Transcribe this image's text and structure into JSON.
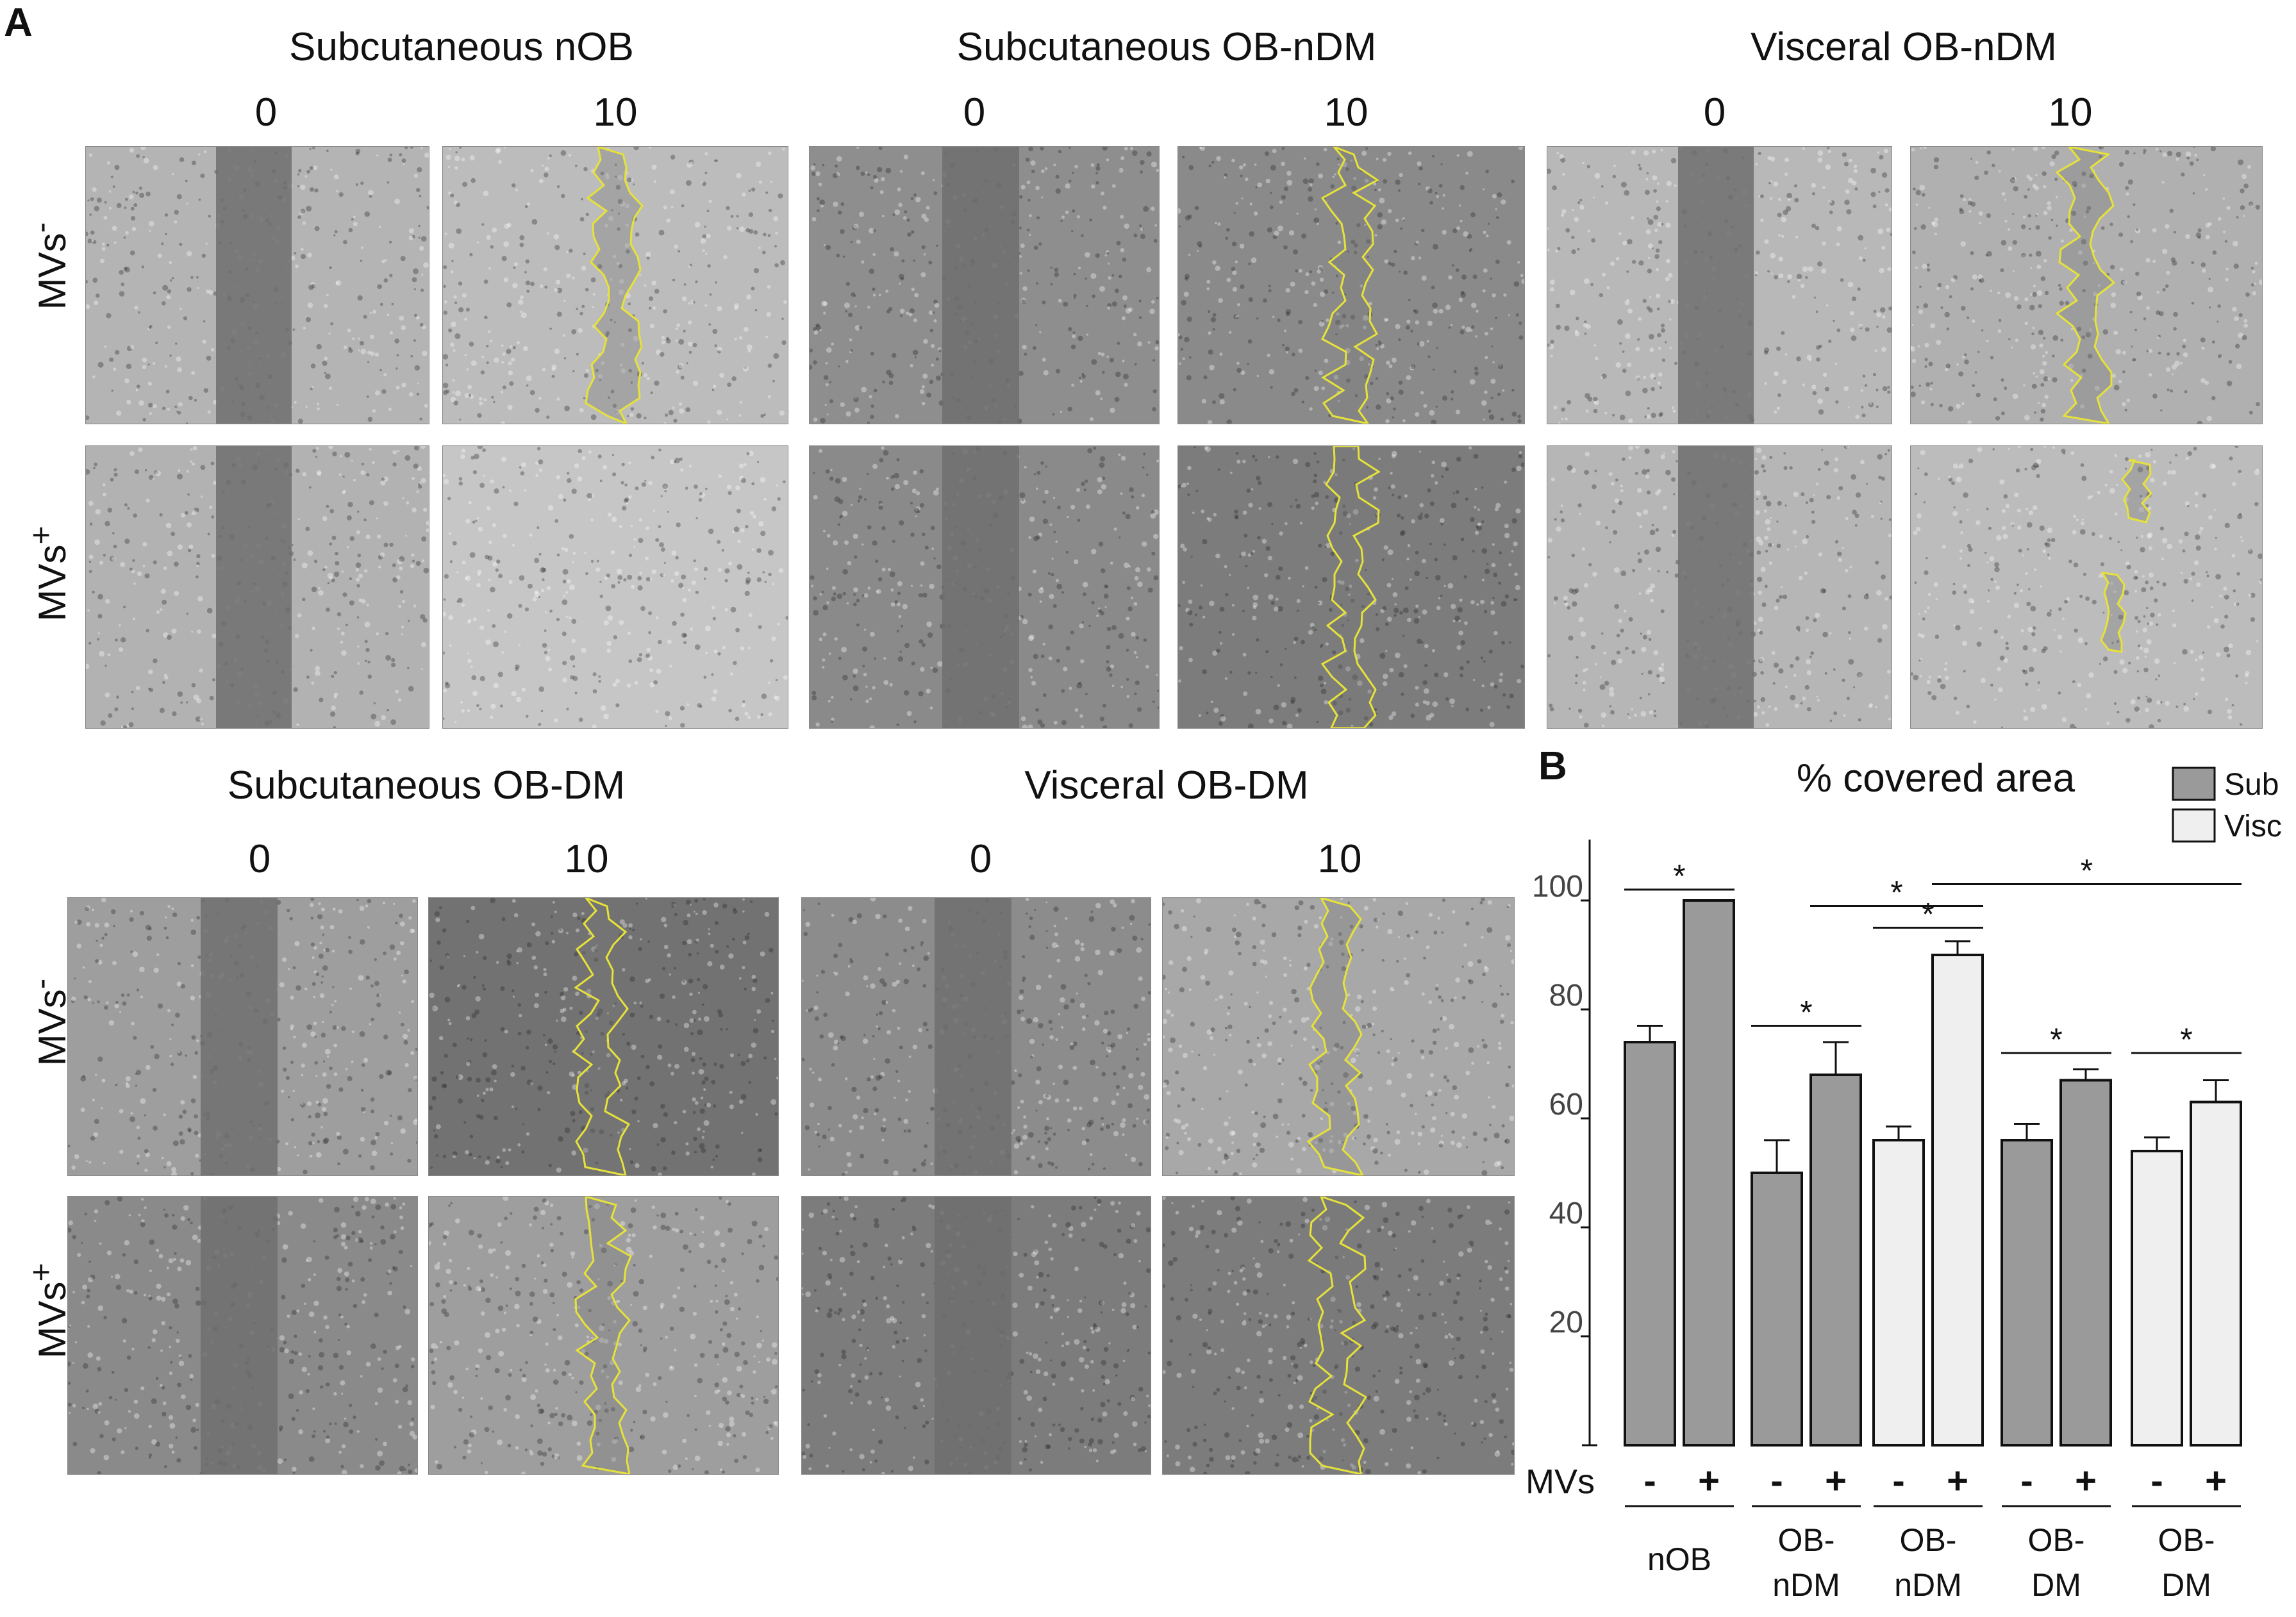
{
  "figure": {
    "panel_a_label": "A",
    "panel_b_label": "B",
    "top_groups": [
      {
        "title": "Subcutaneous nOB",
        "times": [
          "0",
          "10"
        ]
      },
      {
        "title": "Subcutaneous OB-nDM",
        "times": [
          "0",
          "10"
        ]
      },
      {
        "title": "Visceral OB-nDM",
        "times": [
          "0",
          "10"
        ]
      }
    ],
    "bottom_groups": [
      {
        "title": "Subcutaneous OB-DM",
        "times": [
          "0",
          "10"
        ]
      },
      {
        "title": "Visceral OB-DM",
        "times": [
          "0",
          "10"
        ]
      }
    ],
    "row_labels": {
      "minus": "MVs",
      "minus_sup": "-",
      "plus": "MVs",
      "plus_sup": "+"
    },
    "colors": {
      "sub_bar": "#9a9a9a",
      "visc_bar": "#efefef",
      "outline": "#e6e23a"
    }
  },
  "chart_data": {
    "type": "bar",
    "title": "% covered area",
    "xlabel": "",
    "ylabel": "",
    "ylim": [
      0,
      110
    ],
    "yticks": [
      "20",
      "40",
      "60",
      "80",
      "100"
    ],
    "ytick_values": [
      20,
      40,
      60,
      80,
      100
    ],
    "legend": [
      {
        "name": "Sub",
        "color": "#9a9a9a"
      },
      {
        "name": "Visc",
        "color": "#efefef"
      }
    ],
    "legend_position": "top-right",
    "mvs_label": "MVs",
    "groups": [
      {
        "label": [
          "nOB"
        ],
        "type": "Sub",
        "bars": [
          {
            "mvs": "-",
            "value": 74,
            "err": 3
          },
          {
            "mvs": "+",
            "value": 100,
            "err": 0
          }
        ]
      },
      {
        "label": [
          "OB-",
          "nDM"
        ],
        "type": "Sub",
        "bars": [
          {
            "mvs": "-",
            "value": 50,
            "err": 6
          },
          {
            "mvs": "+",
            "value": 68,
            "err": 6
          }
        ]
      },
      {
        "label": [
          "OB-",
          "nDM"
        ],
        "type": "Visc",
        "bars": [
          {
            "mvs": "-",
            "value": 56,
            "err": 2.5
          },
          {
            "mvs": "+",
            "value": 90,
            "err": 2.5
          }
        ]
      },
      {
        "label": [
          "OB-",
          "DM"
        ],
        "type": "Sub",
        "bars": [
          {
            "mvs": "-",
            "value": 56,
            "err": 3
          },
          {
            "mvs": "+",
            "value": 67,
            "err": 2
          }
        ]
      },
      {
        "label": [
          "OB-",
          "DM"
        ],
        "type": "Visc",
        "bars": [
          {
            "mvs": "-",
            "value": 54,
            "err": 2.5
          },
          {
            "mvs": "+",
            "value": 63,
            "err": 4
          }
        ]
      }
    ],
    "significance": [
      {
        "from": "g0-",
        "to": "g0+",
        "y": 102,
        "label": "*"
      },
      {
        "from": "g1-",
        "to": "g1+",
        "y": 77,
        "label": "*"
      },
      {
        "from": "g1+",
        "to": "g2+",
        "y": 99,
        "label": "*"
      },
      {
        "from": "g2-",
        "to": "g2+",
        "y": 95,
        "label": "*"
      },
      {
        "from": "g2+",
        "to": "g4+",
        "y": 103,
        "label": "*"
      },
      {
        "from": "g3-",
        "to": "g3+",
        "y": 72,
        "label": "*"
      },
      {
        "from": "g4-",
        "to": "g4+",
        "y": 72,
        "label": "*"
      }
    ]
  }
}
